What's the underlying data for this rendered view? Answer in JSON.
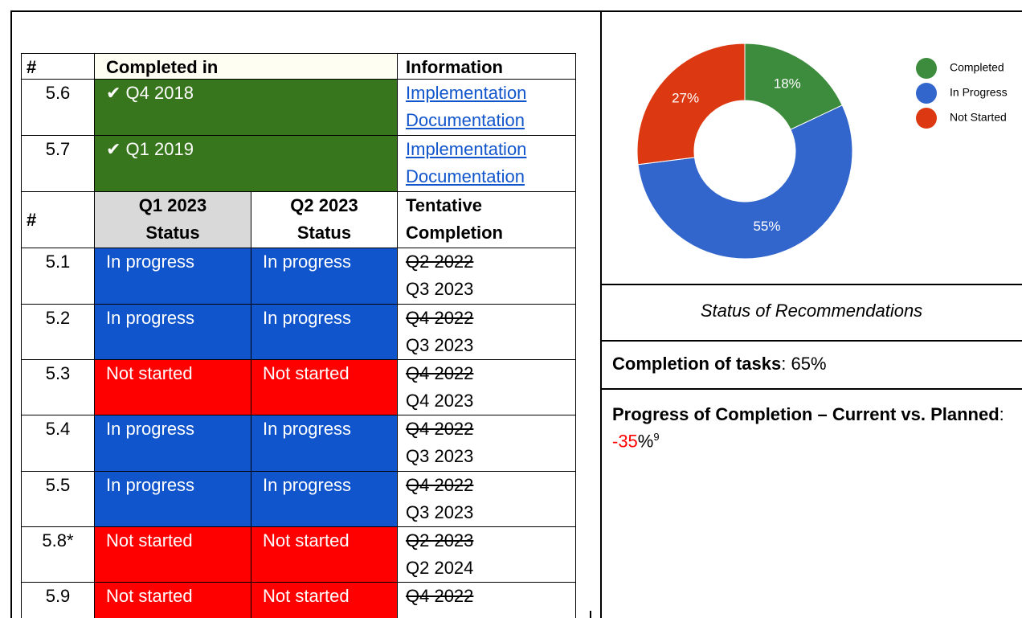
{
  "table": {
    "header1": [
      "#",
      "Completed in",
      "Information"
    ],
    "completed_rows": [
      {
        "id": "5.6",
        "completed": "✔ Q4 2018",
        "links": [
          "Implementation",
          "Documentation"
        ]
      },
      {
        "id": "5.7",
        "completed": "✔ Q1 2019",
        "links": [
          "Implementation",
          "Documentation"
        ]
      }
    ],
    "header2": [
      "#",
      "Q1 2023 Status",
      "Q2 2023 Status",
      "Tentative Completion"
    ],
    "status_rows": [
      {
        "id": "5.1",
        "q1": "In progress",
        "q2": "In progress",
        "old": "Q2 2022",
        "new": "Q3 2023"
      },
      {
        "id": "5.2",
        "q1": "In progress",
        "q2": "In progress",
        "old": "Q4 2022",
        "new": "Q3 2023"
      },
      {
        "id": "5.3",
        "q1": "Not started",
        "q2": "Not started",
        "old": "Q4 2022",
        "new": "Q4 2023"
      },
      {
        "id": "5.4",
        "q1": "In progress",
        "q2": "In progress",
        "old": "Q4 2022",
        "new": "Q3 2023"
      },
      {
        "id": "5.5",
        "q1": "In progress",
        "q2": "In progress",
        "old": "Q4 2022",
        "new": "Q3 2023"
      },
      {
        "id": "5.8*",
        "q1": "Not started",
        "q2": "Not started",
        "old": "Q2 2023",
        "new": "Q2 2024"
      },
      {
        "id": "5.9",
        "q1": "Not started",
        "q2": "Not started",
        "old": "Q4 2022",
        "new": null
      }
    ]
  },
  "chart": {
    "type": "pie",
    "categories": [
      "Completed",
      "In Progress",
      "Not Started"
    ],
    "values": [
      18,
      55,
      27
    ],
    "value_labels": [
      "18%",
      "55%",
      "27%"
    ],
    "colors": [
      "#3d8b3d",
      "#3366cc",
      "#dc3912"
    ],
    "donut": true,
    "legend": "top-right"
  },
  "caption": "Status of Recommendations",
  "completion": {
    "label": "Completion of tasks",
    "separator": ": ",
    "value": "65%"
  },
  "progress": {
    "label": "Progress of Completion – Current vs. Planned",
    "separator": ": ",
    "value": "-35",
    "unit": "%",
    "footnote": "9"
  }
}
